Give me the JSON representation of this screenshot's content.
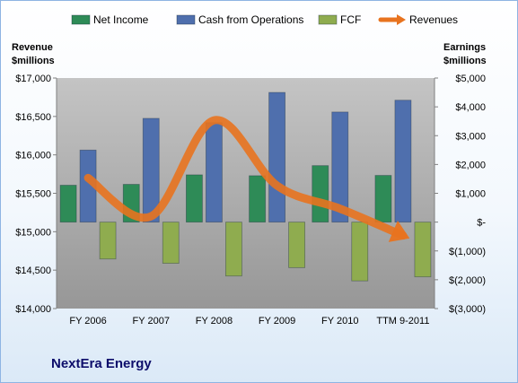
{
  "chart_data": {
    "type": "bar",
    "title": "NextEra Energy",
    "categories": [
      "FY 2006",
      "FY 2007",
      "FY 2008",
      "FY 2009",
      "FY 2010",
      "TTM 9-2011"
    ],
    "left_axis": {
      "label_line1": "Revenue",
      "label_line2": "$millions",
      "range": [
        14000,
        17000
      ],
      "ticks": [
        14000,
        14500,
        15000,
        15500,
        16000,
        16500,
        17000
      ],
      "tick_labels": [
        "$14,000",
        "$14,500",
        "$15,000",
        "$15,500",
        "$16,000",
        "$16,500",
        "$17,000"
      ]
    },
    "right_axis": {
      "label_line1": "Earnings",
      "label_line2": "$millions",
      "range": [
        -3000,
        5000
      ],
      "ticks": [
        -3000,
        -2000,
        -1000,
        0,
        1000,
        2000,
        3000,
        4000,
        5000
      ],
      "tick_labels": [
        "$(3,000)",
        "$(2,000)",
        "$(1,000)",
        "$-",
        "$1,000",
        "$2,000",
        "$3,000",
        "$4,000",
        "$5,000"
      ]
    },
    "series": [
      {
        "name": "Net Income",
        "type": "bar",
        "axis": "right",
        "color": "#2e8b57",
        "values": [
          1280,
          1310,
          1640,
          1610,
          1960,
          1620
        ]
      },
      {
        "name": "Cash from Operations",
        "type": "bar",
        "axis": "right",
        "color": "#4f6fad",
        "values": [
          2500,
          3600,
          3450,
          4500,
          3820,
          4230
        ]
      },
      {
        "name": "FCF",
        "type": "bar",
        "axis": "right",
        "color": "#8fac4f",
        "values": [
          -1280,
          -1430,
          -1870,
          -1580,
          -2040,
          -1900
        ]
      },
      {
        "name": "Revenues",
        "type": "line",
        "axis": "left",
        "color": "#e8731f",
        "values": [
          15700,
          15200,
          16450,
          15600,
          15300,
          14950
        ]
      }
    ],
    "legend_position": "top",
    "grid": false
  }
}
